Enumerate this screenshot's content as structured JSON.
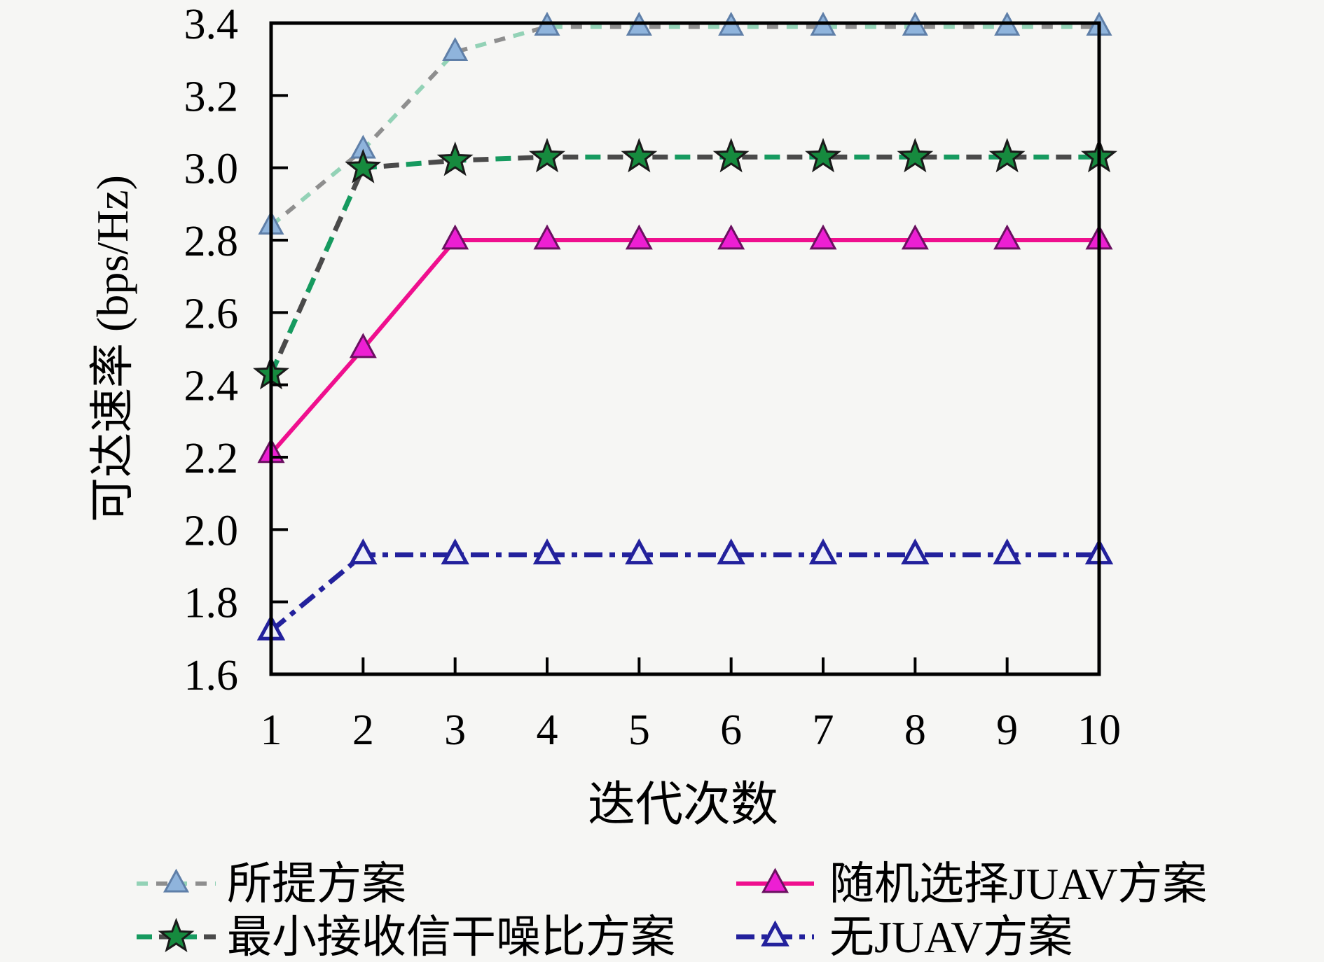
{
  "figure": {
    "background_color": "#f6f6f4",
    "axis_color": "#000000"
  },
  "chart_data": {
    "type": "line",
    "title": "",
    "xlabel": "迭代次数",
    "ylabel": "可达速率 (bps/Hz)",
    "x": [
      1,
      2,
      3,
      4,
      5,
      6,
      7,
      8,
      9,
      10
    ],
    "xlim": [
      1,
      10
    ],
    "ylim": [
      1.6,
      3.4
    ],
    "xtick_labels": [
      "1",
      "2",
      "3",
      "4",
      "5",
      "6",
      "7",
      "8",
      "9",
      "10"
    ],
    "ytick_labels": [
      "1.6",
      "1.8",
      "2.0",
      "2.2",
      "2.4",
      "2.6",
      "2.8",
      "3.0",
      "3.2",
      "3.4"
    ],
    "grid": false,
    "legend_position": "below-plot-two-columns",
    "series": [
      {
        "name": "所提方案",
        "values": [
          2.84,
          3.05,
          3.32,
          3.39,
          3.39,
          3.39,
          3.39,
          3.39,
          3.39,
          3.39
        ],
        "line_style": "dash-dot two-tone (mint green / gray)",
        "marker_shape": "triangle-up",
        "style": {
          "width": 6,
          "strokes": [
            {
              "color": "#93d2b6",
              "dash": "16 40",
              "offset": 0
            },
            {
              "color": "#8e8e8e",
              "dash": "16 40",
              "offset": 28
            }
          ],
          "marker": {
            "shape": "triangle",
            "size": 32,
            "fill": "#8fb4dc",
            "stroke": "#5f7fa8",
            "sw": 3
          }
        }
      },
      {
        "name": "最小接收信干噪比方案",
        "values": [
          2.43,
          3.0,
          3.02,
          3.03,
          3.03,
          3.03,
          3.03,
          3.03,
          3.03,
          3.03
        ],
        "line_style": "dashed two-tone (green / dark gray)",
        "marker_shape": "star",
        "style": {
          "width": 7,
          "strokes": [
            {
              "color": "#169a5f",
              "dash": "22 42",
              "offset": 0
            },
            {
              "color": "#4a4a4a",
              "dash": "22 42",
              "offset": 32
            }
          ],
          "marker": {
            "shape": "star",
            "size": 23,
            "fill": "#168a3e",
            "stroke": "#1a1a1a",
            "sw": 3
          }
        }
      },
      {
        "name": "随机选择JUAV方案",
        "values": [
          2.21,
          2.5,
          2.8,
          2.8,
          2.8,
          2.8,
          2.8,
          2.8,
          2.8,
          2.8
        ],
        "line_style": "solid (magenta)",
        "marker_shape": "triangle-up",
        "style": {
          "width": 6,
          "strokes": [
            {
              "color": "#ef0f8e",
              "dash": "",
              "offset": 0
            }
          ],
          "marker": {
            "shape": "triangle",
            "size": 34,
            "fill": "#ed1fd3",
            "stroke": "#6a1060",
            "sw": 3
          }
        }
      },
      {
        "name": "无JUAV方案",
        "values": [
          1.72,
          1.93,
          1.93,
          1.93,
          1.93,
          1.93,
          1.93,
          1.93,
          1.93,
          1.93
        ],
        "line_style": "dash-dot-dot (navy)",
        "marker_shape": "triangle-up-open",
        "style": {
          "width": 7,
          "strokes": [
            {
              "color": "#23219c",
              "dash": "26 10 8 10",
              "offset": 0
            }
          ],
          "marker": {
            "shape": "triangle",
            "size": 32,
            "fill": "#eef0f8",
            "stroke": "#23219c",
            "sw": 5
          }
        }
      }
    ]
  }
}
